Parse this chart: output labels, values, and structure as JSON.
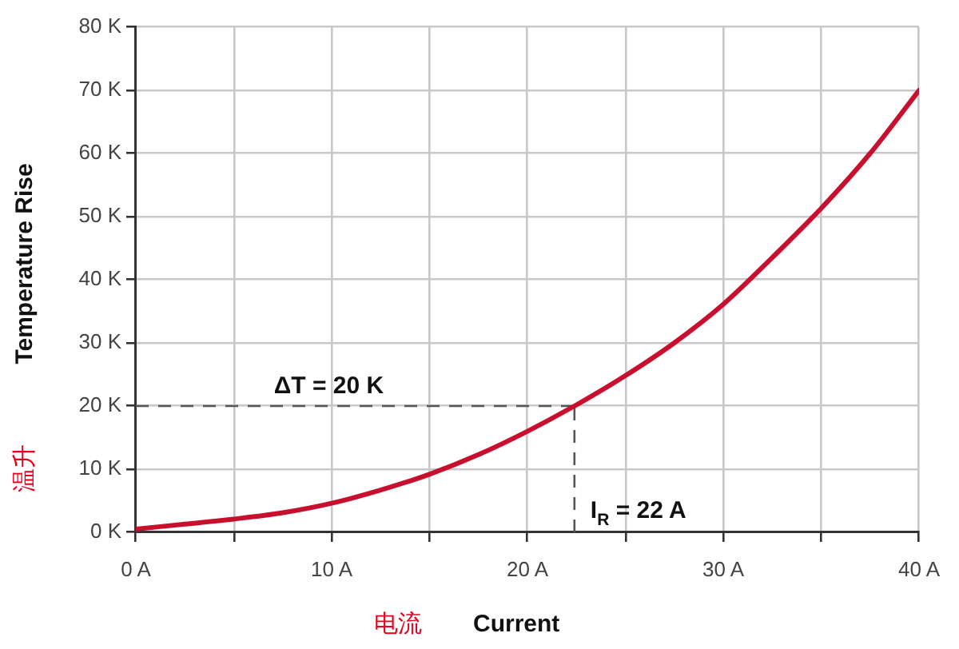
{
  "chart_data": {
    "type": "line",
    "xlabel": "Current",
    "ylabel": "Temperature Rise",
    "annotations": [
      "温升",
      "电流"
    ],
    "x": [
      0,
      2.5,
      5,
      7.5,
      10,
      12.5,
      15,
      17.5,
      20,
      22.4,
      25,
      27.5,
      30,
      32.5,
      35,
      37.5,
      40
    ],
    "series": [
      {
        "color": "#c8102e",
        "values": [
          0.5,
          1.3,
          2.1,
          3.1,
          4.6,
          6.7,
          9.2,
          12.3,
          16,
          20,
          24.8,
          30,
          36.1,
          43.5,
          51.3,
          60,
          70
        ]
      }
    ],
    "xlim": [
      0,
      40
    ],
    "xticks": [
      {
        "value": 0,
        "label": "0 A"
      },
      {
        "value": 5,
        "label": null
      },
      {
        "value": 10,
        "label": "10 A"
      },
      {
        "value": 15,
        "label": null
      },
      {
        "value": 20,
        "label": "20 A"
      },
      {
        "value": 25,
        "label": null
      },
      {
        "value": 30,
        "label": "30 A"
      },
      {
        "value": 35,
        "label": null
      },
      {
        "value": 40,
        "label": "40 A"
      }
    ],
    "ylim": [
      0,
      80
    ],
    "yticks": [
      {
        "value": 0,
        "label": "0 K"
      },
      {
        "value": 10,
        "label": "10 K"
      },
      {
        "value": 20,
        "label": "20 K"
      },
      {
        "value": 30,
        "label": "30 K"
      },
      {
        "value": 40,
        "label": "40 K"
      },
      {
        "value": 50,
        "label": "50 K"
      },
      {
        "value": 60,
        "label": "60 K"
      },
      {
        "value": 70,
        "label": "70 K"
      },
      {
        "value": 80,
        "label": "80 K"
      }
    ],
    "ref_lines": [
      {
        "axis": "y",
        "value": 20,
        "label": "ΔT = 20 K",
        "color": "#555555",
        "line_style": "dashed"
      },
      {
        "axis": "x",
        "value": 22.4,
        "label": "I$_{R}$ = 22 A",
        "color": "#555555",
        "line_style": "dashed"
      }
    ],
    "grid": true,
    "legend": false,
    "marker": "none",
    "line_style": "solid"
  }
}
